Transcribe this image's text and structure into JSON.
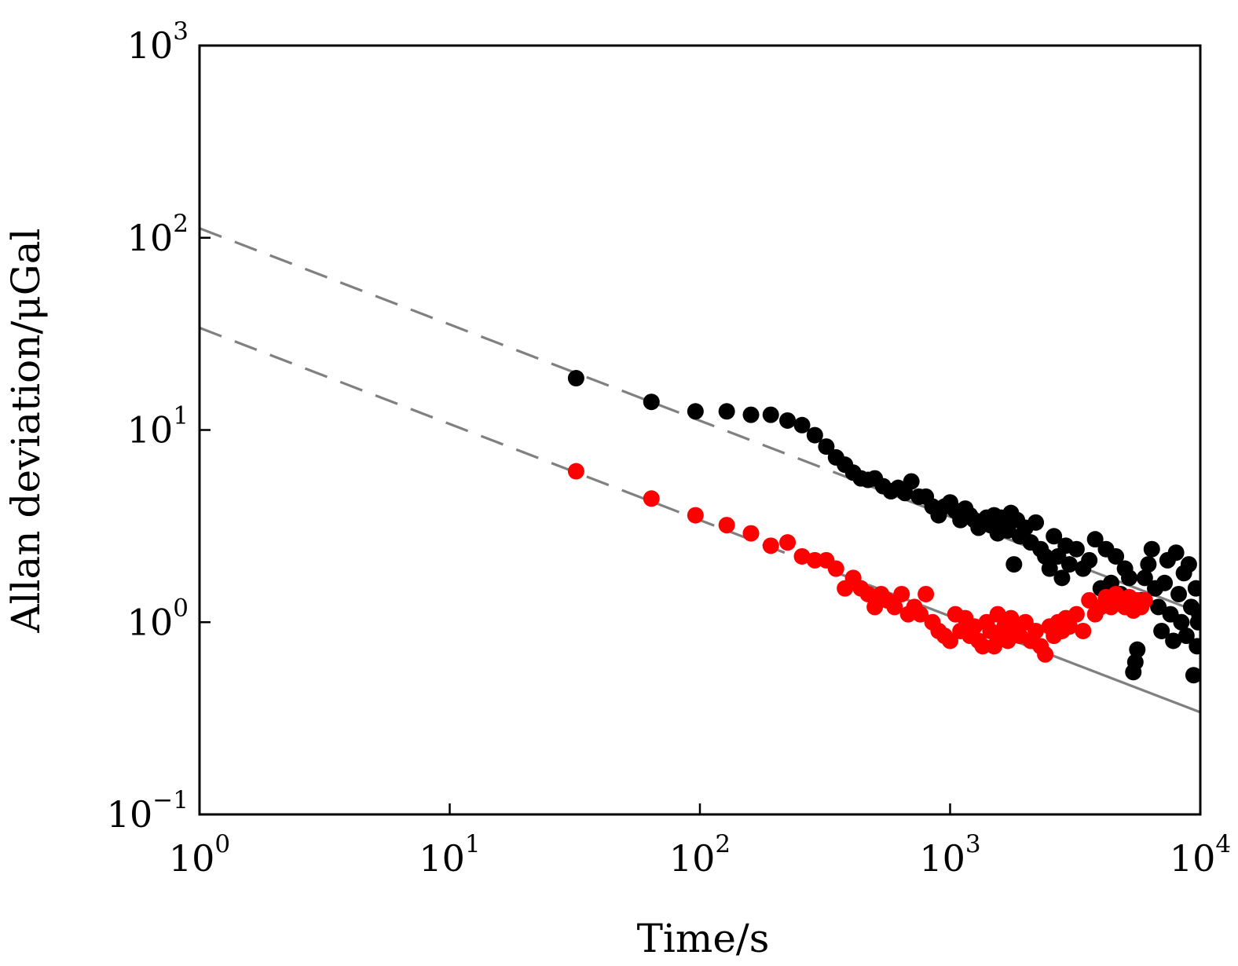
{
  "chart_data": {
    "type": "scatter",
    "title": "",
    "xlabel": "Time/s",
    "ylabel": "Allan deviation/μGal",
    "xscale": "log",
    "yscale": "log",
    "xlim": [
      1,
      10000
    ],
    "ylim": [
      0.1,
      1000
    ],
    "x_ticks": [
      {
        "value": 1,
        "base": "10",
        "exp": "0"
      },
      {
        "value": 10,
        "base": "10",
        "exp": "1"
      },
      {
        "value": 100,
        "base": "10",
        "exp": "2"
      },
      {
        "value": 1000,
        "base": "10",
        "exp": "3"
      },
      {
        "value": 10000,
        "base": "10",
        "exp": "4"
      }
    ],
    "y_ticks": [
      {
        "value": 0.1,
        "base": "10",
        "exp": "−1"
      },
      {
        "value": 1,
        "base": "10",
        "exp": "0"
      },
      {
        "value": 10,
        "base": "10",
        "exp": "1"
      },
      {
        "value": 100,
        "base": "10",
        "exp": "2"
      },
      {
        "value": 1000,
        "base": "10",
        "exp": "3"
      }
    ],
    "grid": false,
    "legend": "none",
    "series": [
      {
        "color": "#000000",
        "marker": "circle",
        "points": [
          [
            32,
            18.6
          ],
          [
            64,
            14.0
          ],
          [
            96,
            12.5
          ],
          [
            128,
            12.5
          ],
          [
            160,
            12.0
          ],
          [
            192,
            12.0
          ],
          [
            224,
            11.2
          ],
          [
            256,
            10.6
          ],
          [
            288,
            9.4
          ],
          [
            320,
            8.2
          ],
          [
            350,
            7.2
          ],
          [
            380,
            6.6
          ],
          [
            410,
            6.0
          ],
          [
            440,
            5.6
          ],
          [
            470,
            5.5
          ],
          [
            500,
            5.6
          ],
          [
            540,
            5.1
          ],
          [
            580,
            4.8
          ],
          [
            620,
            5.0
          ],
          [
            660,
            4.7
          ],
          [
            700,
            5.4
          ],
          [
            750,
            4.5
          ],
          [
            800,
            4.5
          ],
          [
            850,
            4.0
          ],
          [
            900,
            3.6
          ],
          [
            950,
            4.0
          ],
          [
            1000,
            4.2
          ],
          [
            1050,
            3.8
          ],
          [
            1100,
            3.4
          ],
          [
            1150,
            3.9
          ],
          [
            1200,
            3.6
          ],
          [
            1250,
            3.4
          ],
          [
            1300,
            3.1
          ],
          [
            1350,
            3.3
          ],
          [
            1400,
            3.5
          ],
          [
            1450,
            3.2
          ],
          [
            1500,
            3.6
          ],
          [
            1550,
            2.9
          ],
          [
            1600,
            3.5
          ],
          [
            1650,
            3.3
          ],
          [
            1700,
            3.0
          ],
          [
            1750,
            3.7
          ],
          [
            1800,
            2.0
          ],
          [
            1850,
            3.4
          ],
          [
            1900,
            2.8
          ],
          [
            2000,
            3.1
          ],
          [
            2100,
            2.6
          ],
          [
            2200,
            3.3
          ],
          [
            2300,
            2.4
          ],
          [
            2400,
            2.2
          ],
          [
            2500,
            1.9
          ],
          [
            2600,
            2.8
          ],
          [
            2700,
            2.2
          ],
          [
            2800,
            1.7
          ],
          [
            2900,
            2.5
          ],
          [
            3000,
            2.0
          ],
          [
            3200,
            2.4
          ],
          [
            3400,
            1.9
          ],
          [
            3600,
            2.1
          ],
          [
            3800,
            2.7
          ],
          [
            4000,
            1.5
          ],
          [
            4200,
            2.4
          ],
          [
            4400,
            1.6
          ],
          [
            4600,
            2.2
          ],
          [
            4800,
            1.4
          ],
          [
            5000,
            1.9
          ],
          [
            5200,
            1.7
          ],
          [
            5400,
            0.55
          ],
          [
            5500,
            0.62
          ],
          [
            5600,
            0.72
          ],
          [
            5800,
            1.3
          ],
          [
            6000,
            1.7
          ],
          [
            6200,
            2.0
          ],
          [
            6400,
            2.4
          ],
          [
            6600,
            1.5
          ],
          [
            6800,
            1.2
          ],
          [
            7000,
            0.9
          ],
          [
            7200,
            1.6
          ],
          [
            7400,
            2.1
          ],
          [
            7600,
            1.1
          ],
          [
            7800,
            0.8
          ],
          [
            8000,
            2.3
          ],
          [
            8200,
            1.4
          ],
          [
            8400,
            1.0
          ],
          [
            8600,
            1.8
          ],
          [
            8800,
            0.85
          ],
          [
            9000,
            2.0
          ],
          [
            9200,
            1.2
          ],
          [
            9400,
            0.53
          ],
          [
            9600,
            1.5
          ],
          [
            9700,
            0.75
          ],
          [
            9800,
            1.0
          ],
          [
            9900,
            1.1
          ]
        ]
      },
      {
        "color": "#ff0000",
        "marker": "circle",
        "points": [
          [
            32,
            6.1
          ],
          [
            64,
            4.4
          ],
          [
            96,
            3.6
          ],
          [
            128,
            3.2
          ],
          [
            160,
            2.9
          ],
          [
            192,
            2.5
          ],
          [
            224,
            2.6
          ],
          [
            256,
            2.2
          ],
          [
            288,
            2.1
          ],
          [
            320,
            2.1
          ],
          [
            350,
            1.9
          ],
          [
            380,
            1.5
          ],
          [
            410,
            1.7
          ],
          [
            440,
            1.5
          ],
          [
            470,
            1.4
          ],
          [
            500,
            1.2
          ],
          [
            530,
            1.4
          ],
          [
            560,
            1.3
          ],
          [
            600,
            1.2
          ],
          [
            640,
            1.4
          ],
          [
            680,
            1.1
          ],
          [
            720,
            1.2
          ],
          [
            760,
            1.1
          ],
          [
            800,
            1.4
          ],
          [
            850,
            1.0
          ],
          [
            900,
            0.9
          ],
          [
            950,
            0.85
          ],
          [
            1000,
            0.8
          ],
          [
            1050,
            1.1
          ],
          [
            1100,
            0.9
          ],
          [
            1150,
            1.05
          ],
          [
            1200,
            0.85
          ],
          [
            1250,
            0.95
          ],
          [
            1300,
            0.8
          ],
          [
            1350,
            0.75
          ],
          [
            1400,
            1.0
          ],
          [
            1450,
            0.9
          ],
          [
            1500,
            0.75
          ],
          [
            1550,
            1.1
          ],
          [
            1600,
            0.85
          ],
          [
            1650,
            0.95
          ],
          [
            1700,
            0.8
          ],
          [
            1750,
            1.05
          ],
          [
            1800,
            0.9
          ],
          [
            1900,
            0.85
          ],
          [
            2000,
            1.0
          ],
          [
            2100,
            0.8
          ],
          [
            2200,
            0.9
          ],
          [
            2300,
            0.75
          ],
          [
            2400,
            0.68
          ],
          [
            2500,
            0.95
          ],
          [
            2600,
            0.85
          ],
          [
            2700,
            1.0
          ],
          [
            2800,
            0.9
          ],
          [
            2900,
            1.05
          ],
          [
            3000,
            0.95
          ],
          [
            3200,
            1.1
          ],
          [
            3400,
            0.9
          ],
          [
            3600,
            1.3
          ],
          [
            3800,
            1.1
          ],
          [
            4000,
            1.2
          ],
          [
            4200,
            1.35
          ],
          [
            4400,
            1.2
          ],
          [
            4600,
            1.4
          ],
          [
            4800,
            1.3
          ],
          [
            5000,
            1.2
          ],
          [
            5200,
            1.35
          ],
          [
            5400,
            1.15
          ],
          [
            5600,
            1.3
          ],
          [
            5800,
            1.2
          ],
          [
            6000,
            1.3
          ]
        ]
      }
    ],
    "fit_lines": [
      {
        "color": "#808080",
        "style": "dashed",
        "from": [
          1,
          112
        ],
        "to": [
          480,
          5.1
        ]
      },
      {
        "color": "#808080",
        "style": "solid",
        "from": [
          480,
          5.1
        ],
        "to": [
          10000,
          1.12
        ]
      },
      {
        "color": "#808080",
        "style": "dashed",
        "from": [
          1,
          34
        ],
        "to": [
          480,
          1.55
        ]
      },
      {
        "color": "#808080",
        "style": "solid",
        "from": [
          480,
          1.55
        ],
        "to": [
          10000,
          0.34
        ]
      }
    ]
  }
}
